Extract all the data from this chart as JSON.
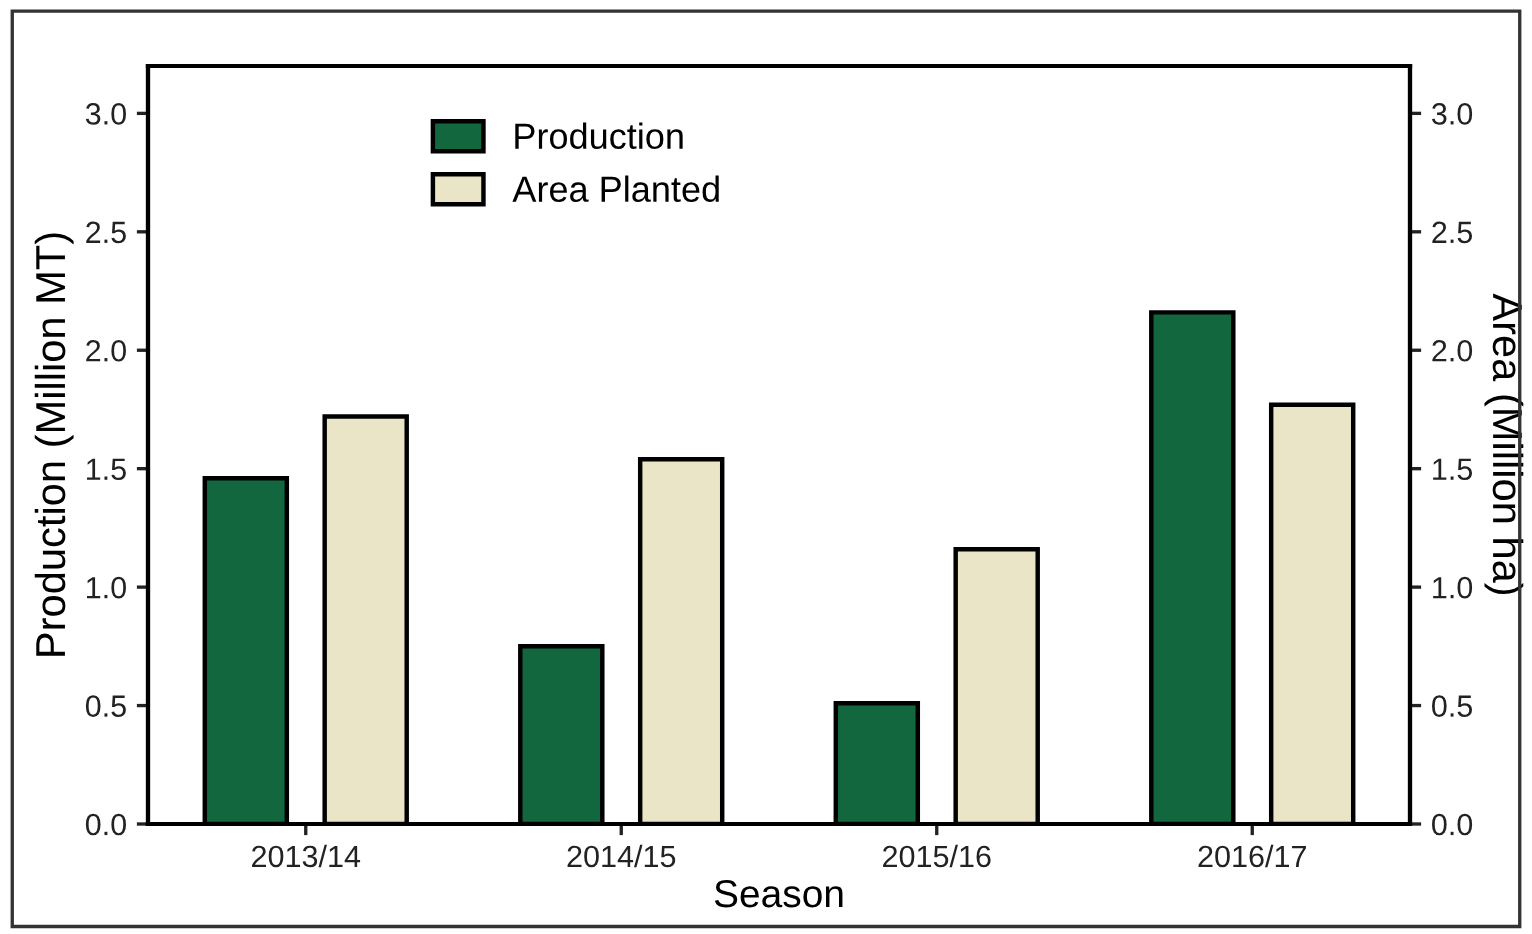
{
  "chart_data": {
    "type": "bar",
    "xlabel": "Season",
    "ylabel": "Production (Million MT)",
    "y2label": "Area (Million ha)",
    "categories": [
      "2013/14",
      "2014/15",
      "2015/16",
      "2016/17"
    ],
    "series": [
      {
        "name": "Production",
        "color": "#12673f",
        "values": [
          1.46,
          0.75,
          0.51,
          2.16
        ]
      },
      {
        "name": "Area Planted",
        "color": "#ebe5c7",
        "values": [
          1.72,
          1.54,
          1.16,
          1.77
        ],
        "axis": "y2"
      }
    ],
    "ylim": [
      0,
      3.2
    ],
    "yticks": [
      {
        "value": 0,
        "label": "0.0"
      },
      {
        "value": 0.5,
        "label": "0.5"
      },
      {
        "value": 1,
        "label": "1.0"
      },
      {
        "value": 1.5,
        "label": "1.5"
      },
      {
        "value": 2,
        "label": "2.0"
      },
      {
        "value": 2.5,
        "label": "2.5"
      },
      {
        "value": 3,
        "label": "3.0"
      }
    ],
    "y2lim": [
      0,
      3.2
    ],
    "y2ticks": [
      {
        "value": 0,
        "label": "0.0"
      },
      {
        "value": 0.5,
        "label": "0.5"
      },
      {
        "value": 1,
        "label": "1.0"
      },
      {
        "value": 1.5,
        "label": "1.5"
      },
      {
        "value": 2,
        "label": "2.0"
      },
      {
        "value": 2.5,
        "label": "2.5"
      },
      {
        "value": 3,
        "label": "3.0"
      }
    ],
    "legend": "top left",
    "grid": false
  }
}
